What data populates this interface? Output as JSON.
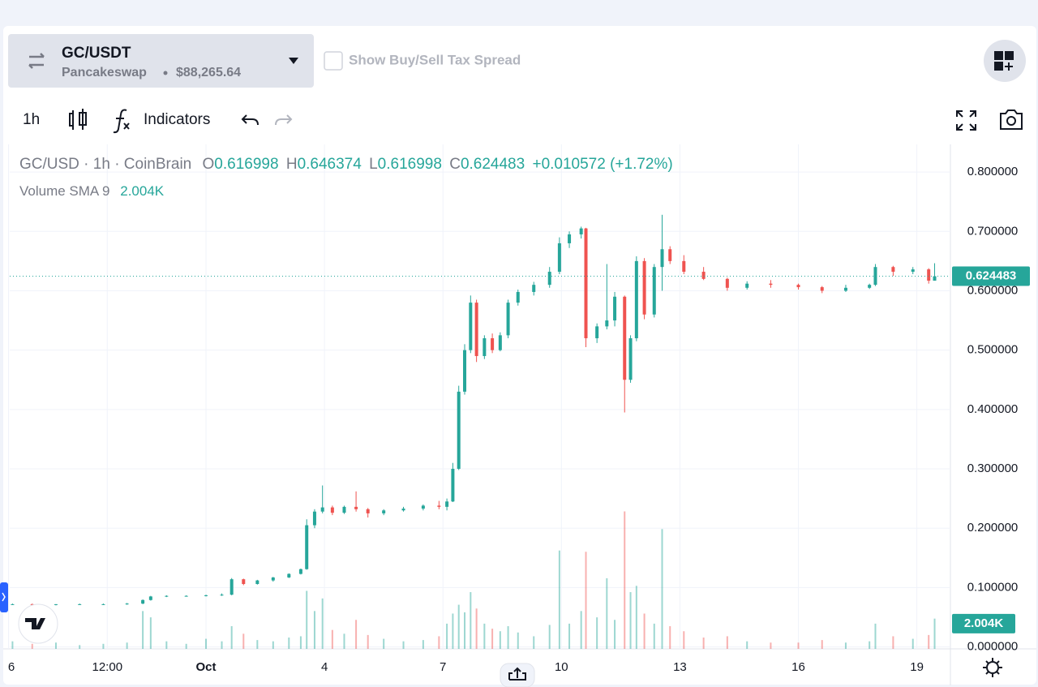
{
  "header": {
    "pair": "GC/USDT",
    "exchange": "Pancakeswap",
    "price": "$88,265.64",
    "checkbox_label": "Show Buy/Sell Tax Spread"
  },
  "toolbar": {
    "interval": "1h",
    "indicators": "Indicators"
  },
  "chart_data": {
    "type": "candlestick",
    "title": "GC/USD · 1h · CoinBrain",
    "legend_labels": {
      "open": "O",
      "high": "H",
      "low": "L",
      "close": "C"
    },
    "change": "+0.010572 (+1.72%)",
    "volume_label": "Volume SMA 9",
    "volume_sma": {
      "value": 2.004,
      "label": "2.004K"
    },
    "up_color": "#26a69a",
    "down_color": "#ef5350",
    "xlim": [
      -4.97,
      18.85
    ],
    "xticks": [
      {
        "value": -5,
        "label": "6"
      },
      {
        "value": -2.5,
        "label": "12:00"
      },
      {
        "value": 0,
        "label": "Oct"
      },
      {
        "value": 3,
        "label": "4"
      },
      {
        "value": 6,
        "label": "7"
      },
      {
        "value": 9,
        "label": "10"
      },
      {
        "value": 12,
        "label": "13"
      },
      {
        "value": 15,
        "label": "16"
      },
      {
        "value": 18,
        "label": "19"
      }
    ],
    "ylim": [
      -0.0033,
      0.8466
    ],
    "yticks": [
      {
        "value": 0,
        "label": "0.000000"
      },
      {
        "value": 0.1,
        "label": "0.100000"
      },
      {
        "value": 0.2,
        "label": "0.200000"
      },
      {
        "value": 0.3,
        "label": "0.300000"
      },
      {
        "value": 0.4,
        "label": "0.400000"
      },
      {
        "value": 0.5,
        "label": "0.500000"
      },
      {
        "value": 0.6,
        "label": "0.600000"
      },
      {
        "value": 0.7,
        "label": "0.700000"
      },
      {
        "value": 0.8,
        "label": "0.800000"
      }
    ],
    "volume_lim": [
      0,
      40
    ],
    "grid": true,
    "x": [
      -4.9,
      -4.4,
      -3.8,
      -3.2,
      -2.6,
      -2.0,
      -1.6,
      -1.4,
      -1.0,
      -0.5,
      0.0,
      0.4,
      0.65,
      0.95,
      1.3,
      1.7,
      2.1,
      2.4,
      2.55,
      2.75,
      2.95,
      3.2,
      3.5,
      3.8,
      4.1,
      4.5,
      5.0,
      5.5,
      5.9,
      6.1,
      6.25,
      6.4,
      6.55,
      6.7,
      6.85,
      7.05,
      7.25,
      7.45,
      7.65,
      7.9,
      8.3,
      8.7,
      8.95,
      9.2,
      9.5,
      9.62,
      9.9,
      10.15,
      10.35,
      10.6,
      10.75,
      10.9,
      11.1,
      11.35,
      11.55,
      11.75,
      12.1,
      12.6,
      13.2,
      13.7,
      14.3,
      15.0,
      15.6,
      16.2,
      16.8,
      16.95,
      17.4,
      17.9,
      18.3,
      18.45
    ],
    "open": [
      0.072,
      0.072,
      0.071,
      0.072,
      0.072,
      0.072,
      0.073,
      0.079,
      0.085,
      0.086,
      0.086,
      0.087,
      0.088,
      0.114,
      0.106,
      0.112,
      0.117,
      0.123,
      0.131,
      0.205,
      0.228,
      0.235,
      0.226,
      0.236,
      0.232,
      0.225,
      0.23,
      0.233,
      0.238,
      0.236,
      0.245,
      0.3,
      0.43,
      0.5,
      0.58,
      0.49,
      0.52,
      0.5,
      0.525,
      0.58,
      0.598,
      0.61,
      0.632,
      0.68,
      0.695,
      0.705,
      0.52,
      0.54,
      0.55,
      0.59,
      0.45,
      0.52,
      0.65,
      0.56,
      0.64,
      0.67,
      0.65,
      0.632,
      0.62,
      0.605,
      0.612,
      0.61,
      0.606,
      0.6,
      0.605,
      0.61,
      0.64,
      0.632,
      0.636,
      0.616998
    ],
    "high": [
      0.073,
      0.073,
      0.072,
      0.073,
      0.073,
      0.074,
      0.08,
      0.086,
      0.087,
      0.087,
      0.088,
      0.09,
      0.116,
      0.115,
      0.113,
      0.118,
      0.124,
      0.132,
      0.215,
      0.232,
      0.272,
      0.238,
      0.238,
      0.262,
      0.234,
      0.232,
      0.236,
      0.24,
      0.246,
      0.25,
      0.31,
      0.44,
      0.51,
      0.592,
      0.585,
      0.525,
      0.528,
      0.53,
      0.585,
      0.602,
      0.615,
      0.64,
      0.69,
      0.7,
      0.708,
      0.706,
      0.545,
      0.645,
      0.598,
      0.592,
      0.525,
      0.658,
      0.655,
      0.645,
      0.728,
      0.675,
      0.66,
      0.64,
      0.622,
      0.616,
      0.618,
      0.612,
      0.608,
      0.61,
      0.612,
      0.645,
      0.642,
      0.64,
      0.638,
      0.646374
    ],
    "low": [
      0.071,
      0.071,
      0.07,
      0.071,
      0.071,
      0.071,
      0.072,
      0.078,
      0.084,
      0.085,
      0.085,
      0.086,
      0.087,
      0.104,
      0.105,
      0.11,
      0.116,
      0.122,
      0.13,
      0.2,
      0.225,
      0.222,
      0.224,
      0.228,
      0.218,
      0.222,
      0.228,
      0.23,
      0.232,
      0.23,
      0.244,
      0.298,
      0.425,
      0.495,
      0.48,
      0.485,
      0.495,
      0.498,
      0.52,
      0.575,
      0.592,
      0.605,
      0.628,
      0.672,
      0.688,
      0.505,
      0.512,
      0.535,
      0.54,
      0.395,
      0.445,
      0.515,
      0.552,
      0.555,
      0.6,
      0.645,
      0.628,
      0.618,
      0.6,
      0.602,
      0.605,
      0.602,
      0.596,
      0.598,
      0.603,
      0.608,
      0.625,
      0.628,
      0.612,
      0.616998
    ],
    "close": [
      0.072,
      0.071,
      0.072,
      0.072,
      0.072,
      0.073,
      0.079,
      0.085,
      0.086,
      0.086,
      0.087,
      0.088,
      0.114,
      0.106,
      0.112,
      0.117,
      0.123,
      0.131,
      0.205,
      0.228,
      0.235,
      0.226,
      0.236,
      0.232,
      0.225,
      0.23,
      0.233,
      0.238,
      0.236,
      0.245,
      0.3,
      0.43,
      0.5,
      0.58,
      0.49,
      0.52,
      0.5,
      0.525,
      0.58,
      0.598,
      0.61,
      0.632,
      0.68,
      0.695,
      0.705,
      0.52,
      0.54,
      0.55,
      0.59,
      0.45,
      0.52,
      0.65,
      0.56,
      0.64,
      0.67,
      0.65,
      0.632,
      0.62,
      0.605,
      0.612,
      0.61,
      0.606,
      0.6,
      0.605,
      0.61,
      0.64,
      0.632,
      0.636,
      0.617,
      0.624483
    ],
    "volume": [
      0.6,
      0.4,
      0.5,
      0.3,
      0.4,
      0.5,
      3.0,
      2.5,
      0.6,
      0.4,
      0.8,
      0.6,
      1.8,
      1.2,
      0.7,
      0.6,
      0.9,
      1.0,
      4.6,
      3.0,
      4.0,
      1.5,
      1.2,
      2.3,
      1.1,
      0.8,
      0.6,
      0.7,
      1.0,
      2.0,
      2.8,
      3.5,
      2.9,
      4.5,
      3.2,
      2.0,
      1.6,
      1.4,
      1.8,
      1.3,
      1.0,
      1.9,
      7.8,
      2.0,
      3.0,
      7.7,
      2.5,
      5.6,
      2.3,
      10.9,
      4.5,
      5.0,
      2.8,
      2.0,
      9.5,
      1.8,
      1.4,
      0.9,
      1.0,
      0.6,
      0.5,
      0.5,
      0.7,
      0.5,
      0.6,
      2.0,
      1.0,
      0.8,
      1.1,
      2.4
    ]
  }
}
